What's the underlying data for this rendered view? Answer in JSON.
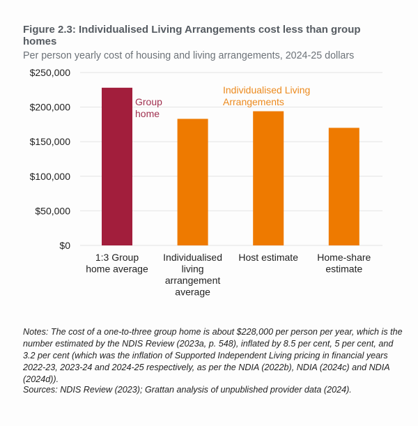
{
  "figure": {
    "title": "Figure 2.3: Individualised Living Arrangements cost less than group homes",
    "subtitle": "Per person yearly cost of housing and living arrangements, 2024-25 dollars",
    "notes": "Notes: The cost of a one-to-three group home is about $228,000 per person per year, which is the number estimated by the NDIS Review (2023a, p. 548), inflated by 8.5 per cent, 5 per cent, and 3.2 per cent (which was the inflation of Supported Independent Living pricing in financial years 2022-23, 2023-24 and 2024-25 respectively, as per the NDIA (2022b), NDIA (2024c) and NDIA (2024d)).",
    "sources": "Sources: NDIS Review (2023); Grattan analysis of unpublished provider data (2024)."
  },
  "chart_data": {
    "type": "bar",
    "title": "Figure 2.3: Individualised Living Arrangements cost less than group homes",
    "subtitle": "Per person yearly cost of housing and living arrangements, 2024-25 dollars",
    "xlabel": "",
    "ylabel": "",
    "ylim": [
      0,
      250000
    ],
    "grid": true,
    "yticks": [
      0,
      50000,
      100000,
      150000,
      200000,
      250000
    ],
    "ytick_labels": [
      "$0",
      "$50,000",
      "$100,000",
      "$150,000",
      "$200,000",
      "$250,000"
    ],
    "categories": [
      [
        "1:3 Group",
        "home average"
      ],
      [
        "Individualised",
        "living",
        "arrangement",
        "average"
      ],
      [
        "Host estimate"
      ],
      [
        "Home-share",
        "estimate"
      ]
    ],
    "values": [
      228000,
      183000,
      194000,
      170000
    ],
    "bar_groups": [
      "group",
      "ila",
      "ila",
      "ila"
    ],
    "annotations": [
      {
        "lines": [
          "Group",
          "home"
        ],
        "group": "group"
      },
      {
        "lines": [
          "Individualised Living",
          "Arrangements"
        ],
        "group": "ila"
      }
    ],
    "colors": {
      "group": "#a21e3c",
      "ila": "#ee7a00",
      "group_text": "#a0304f",
      "ila_text": "#ec8a1e",
      "grid": "#e4e4e4"
    }
  }
}
